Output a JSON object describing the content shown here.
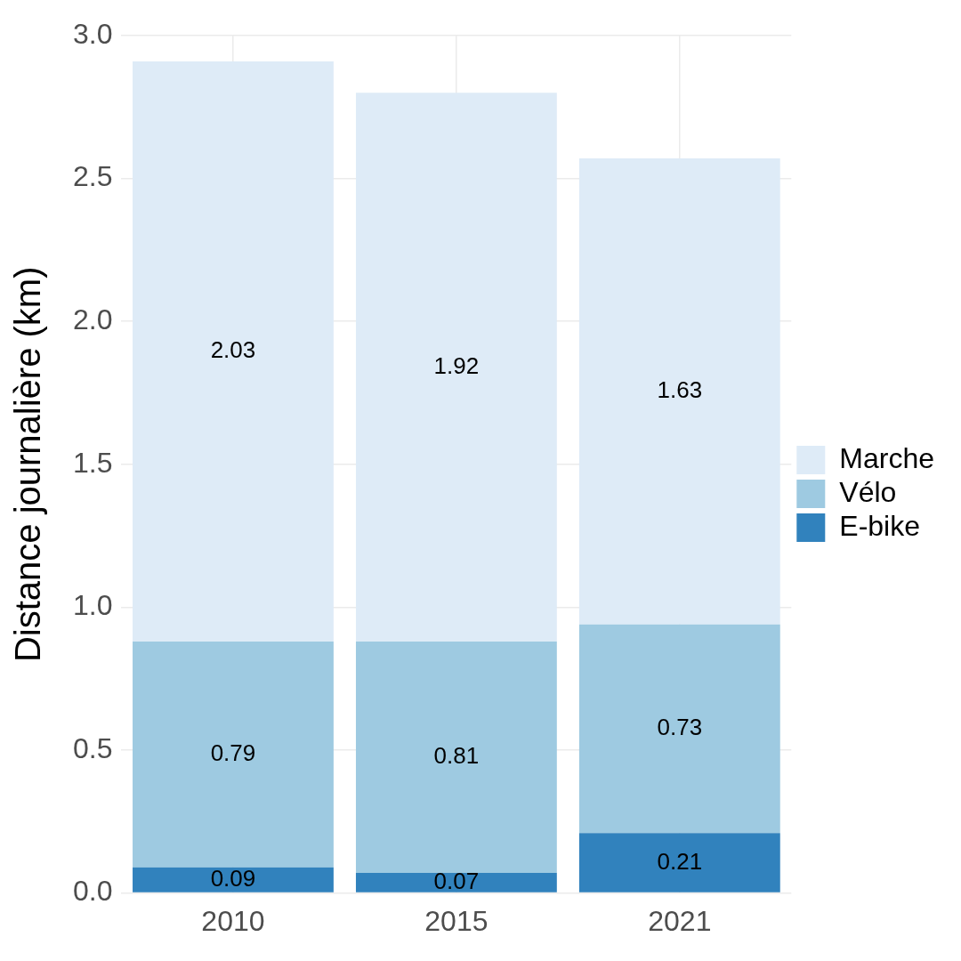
{
  "chart_data": {
    "type": "bar",
    "y_label": "Distance journalière (km)",
    "categories": [
      "2010",
      "2015",
      "2021"
    ],
    "series": [
      {
        "name": "E-bike",
        "color": "#3182bd",
        "values": [
          0.09,
          0.07,
          0.21
        ]
      },
      {
        "name": "Vélo",
        "color": "#9ecae1",
        "values": [
          0.79,
          0.81,
          0.73
        ]
      },
      {
        "name": "Marche",
        "color": "#deebf7",
        "values": [
          2.03,
          1.92,
          1.63
        ]
      }
    ],
    "stacked": true,
    "data_labels": true,
    "grid": true,
    "legend": "right",
    "ylim": [
      0,
      3.0
    ],
    "yticks": [
      {
        "value": 0,
        "label": "0.0"
      },
      0.5,
      {
        "value": 1,
        "label": "1.0"
      },
      1.5,
      {
        "value": 2,
        "label": "2.0"
      },
      2.5,
      {
        "value": 3,
        "label": "3.0"
      }
    ]
  }
}
